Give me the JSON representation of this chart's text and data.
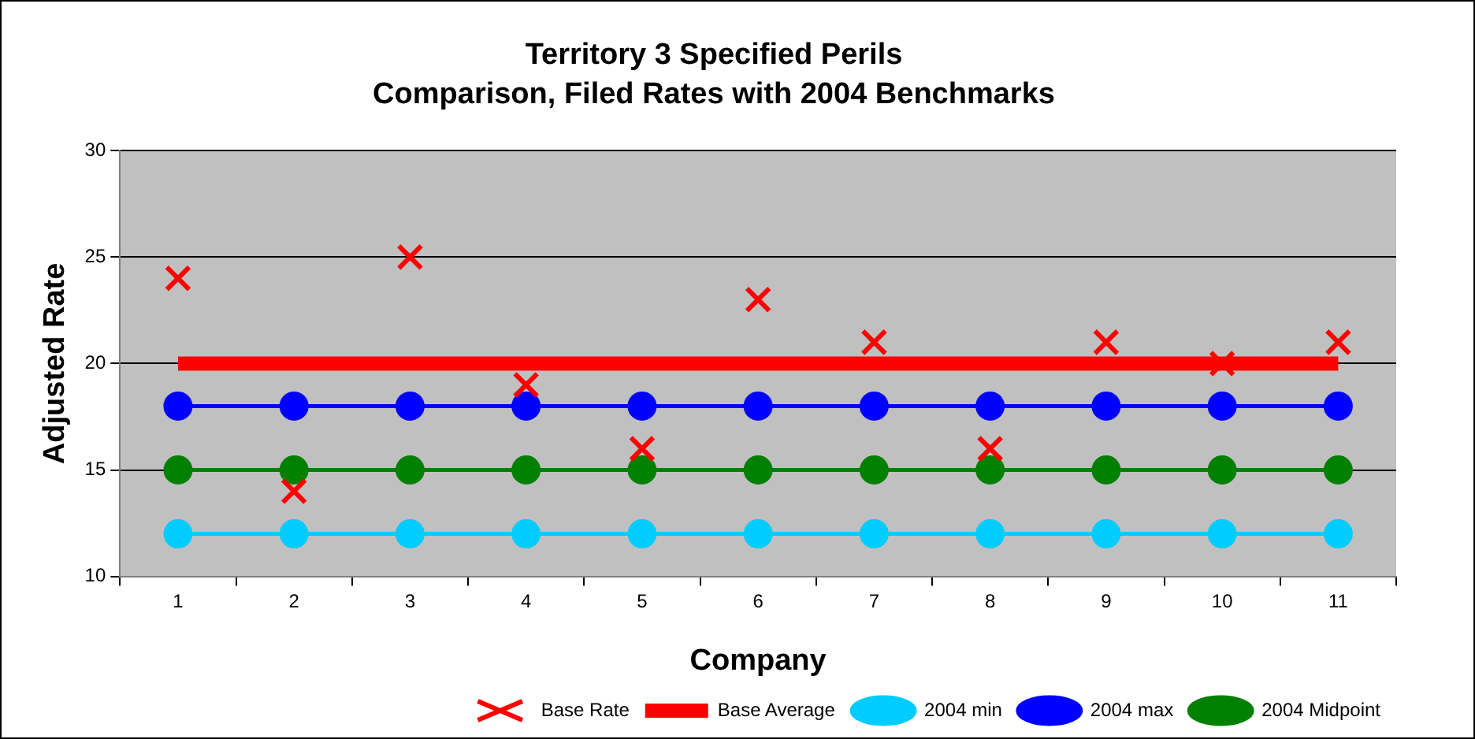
{
  "chart_data": {
    "type": "line",
    "title": "Territory 3 Specified Perils",
    "subtitle": "Comparison, Filed Rates with 2004 Benchmarks",
    "xlabel": "Company",
    "ylabel": "Adjusted Rate",
    "categories": [
      "1",
      "2",
      "3",
      "4",
      "5",
      "6",
      "7",
      "8",
      "9",
      "10",
      "11"
    ],
    "series": [
      {
        "name": "Base Rate",
        "type": "scatter",
        "marker": "cross",
        "color": "#ff0000",
        "values": [
          24,
          14,
          25,
          19,
          16,
          23,
          21,
          16,
          21,
          20,
          21
        ]
      },
      {
        "name": "Base Average",
        "marker": "none",
        "color": "#ff0000",
        "values": [
          20,
          20,
          20,
          20,
          20,
          20,
          20,
          20,
          20,
          20,
          20
        ]
      },
      {
        "name": "2004 min",
        "marker": "circle",
        "color": "#00ccff",
        "values": [
          12,
          12,
          12,
          12,
          12,
          12,
          12,
          12,
          12,
          12,
          12
        ]
      },
      {
        "name": "2004 max",
        "marker": "circle",
        "color": "#0000ff",
        "values": [
          18,
          18,
          18,
          18,
          18,
          18,
          18,
          18,
          18,
          18,
          18
        ]
      },
      {
        "name": "2004 Midpoint",
        "marker": "circle",
        "color": "#008000",
        "values": [
          15,
          15,
          15,
          15,
          15,
          15,
          15,
          15,
          15,
          15,
          15
        ]
      }
    ],
    "ylim": [
      10,
      30
    ],
    "yticks": [
      10,
      15,
      20,
      25,
      30
    ],
    "grid": "y",
    "legend": "bottom"
  }
}
